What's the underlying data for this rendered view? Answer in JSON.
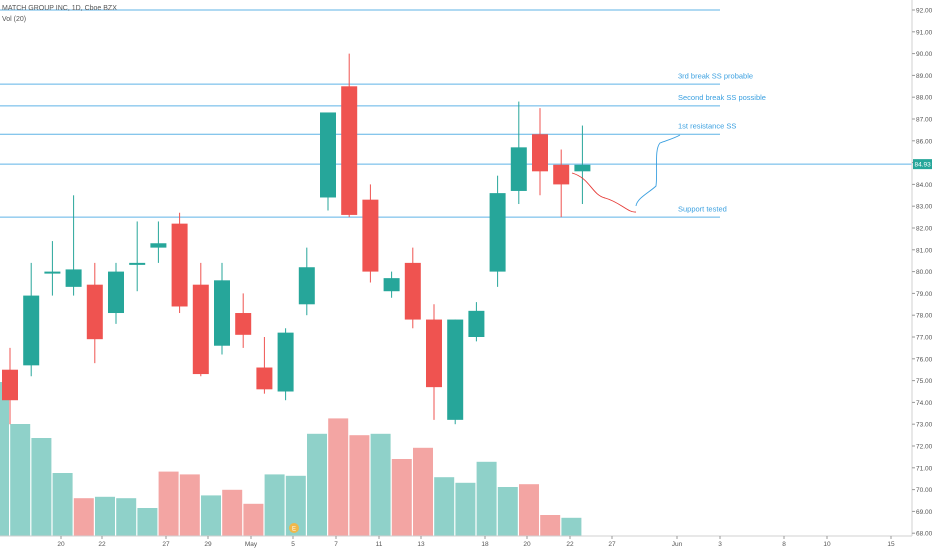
{
  "header": {
    "symbol_line": "MATCH GROUP INC, 1D, Cboe BZX",
    "volume_line": "Vol (20)"
  },
  "colors": {
    "up": "#26a69a",
    "down": "#ef5350",
    "vol_up": "#8fd1c9",
    "vol_down": "#f3a5a3",
    "level_line": "#5fb3e6",
    "annotation_text": "#3ba0e0",
    "curve_red": "#e53935",
    "curve_blue": "#3ba0e0",
    "last_price_badge": "#26a69a"
  },
  "chart_data": {
    "type": "candlestick",
    "ylim": [
      68,
      92.4
    ],
    "y_ticks": [
      "68.00",
      "69.00",
      "70.00",
      "71.00",
      "72.00",
      "73.00",
      "74.00",
      "75.00",
      "76.00",
      "77.00",
      "78.00",
      "79.00",
      "80.00",
      "81.00",
      "82.00",
      "83.00",
      "84.00",
      "85.00",
      "86.00",
      "87.00",
      "88.00",
      "89.00",
      "90.00",
      "91.00",
      "92.00"
    ],
    "x_ticks": [
      "20",
      "22",
      "27",
      "29",
      "May",
      "5",
      "7",
      "11",
      "13",
      "18",
      "20",
      "22",
      "27",
      "Jun",
      "3",
      "8",
      "10",
      "15"
    ],
    "last_price": "84.93",
    "candles": [
      {
        "o": 75.5,
        "h": 76.5,
        "l": 73.0,
        "c": 74.1,
        "dir": "down"
      },
      {
        "o": 75.7,
        "h": 80.4,
        "l": 75.2,
        "c": 78.9,
        "dir": "up"
      },
      {
        "o": 80.0,
        "h": 81.4,
        "l": 78.9,
        "c": 80.0,
        "dir": "doji"
      },
      {
        "o": 79.3,
        "h": 83.5,
        "l": 78.9,
        "c": 80.1,
        "dir": "up"
      },
      {
        "o": 79.4,
        "h": 80.4,
        "l": 75.8,
        "c": 76.9,
        "dir": "down"
      },
      {
        "o": 78.1,
        "h": 80.4,
        "l": 77.6,
        "c": 80.0,
        "dir": "up"
      },
      {
        "o": 80.4,
        "h": 82.3,
        "l": 79.1,
        "c": 80.4,
        "dir": "doji"
      },
      {
        "o": 81.1,
        "h": 82.3,
        "l": 80.4,
        "c": 81.3,
        "dir": "up"
      },
      {
        "o": 82.2,
        "h": 82.7,
        "l": 78.1,
        "c": 78.4,
        "dir": "down"
      },
      {
        "o": 79.4,
        "h": 80.4,
        "l": 75.2,
        "c": 75.3,
        "dir": "down"
      },
      {
        "o": 76.6,
        "h": 80.4,
        "l": 76.2,
        "c": 79.6,
        "dir": "up"
      },
      {
        "o": 78.1,
        "h": 79.0,
        "l": 76.5,
        "c": 77.1,
        "dir": "down"
      },
      {
        "o": 75.6,
        "h": 77.0,
        "l": 74.4,
        "c": 74.6,
        "dir": "down"
      },
      {
        "o": 74.5,
        "h": 77.4,
        "l": 74.1,
        "c": 77.2,
        "dir": "up"
      },
      {
        "o": 78.5,
        "h": 81.1,
        "l": 78.0,
        "c": 80.2,
        "dir": "up"
      },
      {
        "o": 83.4,
        "h": 87.3,
        "l": 82.8,
        "c": 87.3,
        "dir": "up"
      },
      {
        "o": 88.5,
        "h": 90.0,
        "l": 82.5,
        "c": 82.6,
        "dir": "down"
      },
      {
        "o": 83.3,
        "h": 84.0,
        "l": 79.5,
        "c": 80.0,
        "dir": "down"
      },
      {
        "o": 79.1,
        "h": 80.0,
        "l": 78.8,
        "c": 79.7,
        "dir": "up"
      },
      {
        "o": 80.4,
        "h": 81.1,
        "l": 77.4,
        "c": 77.8,
        "dir": "down"
      },
      {
        "o": 77.8,
        "h": 78.5,
        "l": 73.2,
        "c": 74.7,
        "dir": "down"
      },
      {
        "o": 73.2,
        "h": 77.8,
        "l": 73.0,
        "c": 77.8,
        "dir": "up"
      },
      {
        "o": 77.0,
        "h": 78.6,
        "l": 76.8,
        "c": 78.2,
        "dir": "up"
      },
      {
        "o": 80.0,
        "h": 84.4,
        "l": 79.3,
        "c": 83.6,
        "dir": "up"
      },
      {
        "o": 83.7,
        "h": 87.8,
        "l": 83.1,
        "c": 85.7,
        "dir": "up"
      },
      {
        "o": 86.3,
        "h": 87.5,
        "l": 83.5,
        "c": 84.6,
        "dir": "down"
      },
      {
        "o": 84.9,
        "h": 85.6,
        "l": 82.5,
        "c": 84.0,
        "dir": "down"
      },
      {
        "o": 84.6,
        "h": 86.7,
        "l": 83.1,
        "c": 84.9,
        "dir": "up"
      }
    ],
    "volume": [
      {
        "v": 1.1,
        "dir": "up"
      },
      {
        "v": 0.8,
        "dir": "up"
      },
      {
        "v": 0.7,
        "dir": "up"
      },
      {
        "v": 0.45,
        "dir": "up"
      },
      {
        "v": 0.27,
        "dir": "down"
      },
      {
        "v": 0.28,
        "dir": "up"
      },
      {
        "v": 0.27,
        "dir": "up"
      },
      {
        "v": 0.2,
        "dir": "up"
      },
      {
        "v": 0.46,
        "dir": "down"
      },
      {
        "v": 0.44,
        "dir": "down"
      },
      {
        "v": 0.29,
        "dir": "up"
      },
      {
        "v": 0.33,
        "dir": "down"
      },
      {
        "v": 0.23,
        "dir": "down"
      },
      {
        "v": 0.44,
        "dir": "up"
      },
      {
        "v": 0.43,
        "dir": "up"
      },
      {
        "v": 0.73,
        "dir": "up"
      },
      {
        "v": 0.84,
        "dir": "down"
      },
      {
        "v": 0.72,
        "dir": "down"
      },
      {
        "v": 0.73,
        "dir": "up"
      },
      {
        "v": 0.55,
        "dir": "down"
      },
      {
        "v": 0.63,
        "dir": "down"
      },
      {
        "v": 0.42,
        "dir": "up"
      },
      {
        "v": 0.38,
        "dir": "up"
      },
      {
        "v": 0.53,
        "dir": "up"
      },
      {
        "v": 0.35,
        "dir": "up"
      },
      {
        "v": 0.37,
        "dir": "down"
      },
      {
        "v": 0.15,
        "dir": "down"
      },
      {
        "v": 0.13,
        "dir": "up"
      }
    ],
    "levels": [
      {
        "price": 92.0
      },
      {
        "price": 88.6
      },
      {
        "price": 87.6
      },
      {
        "price": 86.3
      },
      {
        "price": 84.93
      },
      {
        "price": 82.5
      }
    ],
    "annotations": [
      {
        "text": "3rd break SS probable",
        "price": 89.0
      },
      {
        "text": "Second break SS possible",
        "price": 88.0
      },
      {
        "text": "1st resistance SS",
        "price": 86.7
      },
      {
        "text": "Support tested",
        "price": 82.9
      }
    ]
  },
  "footer": {
    "event_marker": "E"
  }
}
